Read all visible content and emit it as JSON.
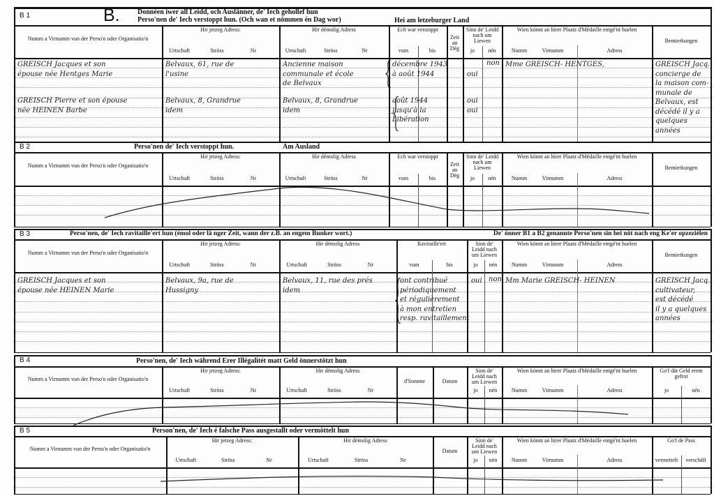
{
  "sections": [
    {
      "id": "B 1",
      "big_letter": "B.",
      "title_lines": [
        "Donnéen iwer all Leidd, och Auslänner, de' Iech gehollef hun",
        "Perso'nen de' Iech verstoppt hun. (Och wan et nömmen én Dag wor)"
      ],
      "subtitle": "Hei am letzeburger Land",
      "columns": {
        "name": {
          "label": "Numm a Virnumm vun der Perso'n oder Organisatio'n",
          "subs": []
        },
        "cur": {
          "label": "Hir jetzeg Adress:",
          "subs": [
            "Urtschaft",
            "Ströss",
            "Nr"
          ]
        },
        "former": {
          "label": "Hir démolig Adress",
          "subs": [
            "Urtschaft",
            "Ströss",
            "Nr"
          ]
        },
        "hid": {
          "label": "Ech war verstoppt",
          "subs": [
            "vum",
            "bis"
          ]
        },
        "zeit": {
          "label": "Zeit an Dég",
          "subs": []
        },
        "sinn": {
          "label": "Sinn de' Leidd nach um Liewen",
          "subs": [
            "jo",
            "nén"
          ]
        },
        "wien": {
          "label": "Wien könnt an hirer Plaatz d'Médaille entgé'nt huelen",
          "subs": [
            "Numm",
            "Virnumm",
            "Adress"
          ]
        },
        "bem": {
          "label": "Bemierkungen",
          "subs": []
        }
      },
      "entries": [
        {
          "col": "name",
          "row": 0,
          "lines": [
            "GREISCH Jacques et son",
            "épouse née Hentges Marie"
          ]
        },
        {
          "col": "cur",
          "row": 0,
          "lines": [
            "Belvaux, 61, rue de",
            "   l'usine"
          ]
        },
        {
          "col": "former",
          "row": 0,
          "lines": [
            "Ancienne maison",
            "communale et école",
            "de Belvaux"
          ]
        },
        {
          "col": "hid",
          "row": 0,
          "lines": [
            "décembre 1943",
            "à août 1944"
          ]
        },
        {
          "col": "jo",
          "row": 0,
          "lines": [
            "",
            "oui"
          ]
        },
        {
          "col": "nen",
          "row": 0,
          "lines": [
            "non"
          ]
        },
        {
          "col": "wien",
          "row": 0,
          "lines": [
            "Mme GREISCH- HENTGES,"
          ]
        },
        {
          "col": "bem",
          "row": 0,
          "lines": [
            "GREISCH Jacq.",
            "concierge de",
            "la maison com-",
            "munale de",
            "Belvaux, est",
            "décédé il y a",
            "quelques",
            "années"
          ]
        },
        {
          "col": "name",
          "row": 1,
          "lines": [
            "GREISCH Pierre et son épouse",
            "née HEINEN Barbe"
          ]
        },
        {
          "col": "cur",
          "row": 1,
          "lines": [
            "Belvaux, 8, Grandrue",
            "       idem"
          ]
        },
        {
          "col": "former",
          "row": 1,
          "lines": [
            "Belvaux, 8, Grandrue",
            "       idem"
          ]
        },
        {
          "col": "hid",
          "row": 1,
          "lines": [
            "août 1944",
            "jusqu'à la",
            "Libération"
          ]
        },
        {
          "col": "jo",
          "row": 1,
          "lines": [
            "oui",
            "oui"
          ]
        }
      ]
    },
    {
      "id": "B 2",
      "title_lines": [
        "Perso'nen de' Iech verstoppt hun."
      ],
      "subtitle": "Am Ausland",
      "columns": {
        "name": {
          "label": "Numm a Virnumm vun der Perso'n oder Organisatio'n",
          "subs": []
        },
        "cur": {
          "label": "Hir jetzeg Adress:",
          "subs": [
            "Urtschaft",
            "Ströss",
            "Nr"
          ]
        },
        "former": {
          "label": "Hir démolig Adress",
          "subs": [
            "Urtschaft",
            "Ströss",
            "Nr"
          ]
        },
        "hid": {
          "label": "Ech war verstoppt",
          "subs": [
            "vum",
            "bis"
          ]
        },
        "zeit": {
          "label": "Zeit an Dég",
          "subs": []
        },
        "sinn": {
          "label": "Sinn de' Leidd nach um Liewen",
          "subs": [
            "jo",
            "nén"
          ]
        },
        "wien": {
          "label": "Wien könnt an hirer Plaatz d'Médaille entgé'nt huelen",
          "subs": [
            "Numm",
            "Virnumm",
            "Adress"
          ]
        },
        "bem": {
          "label": "Bemierkungen",
          "subs": []
        }
      },
      "entries": []
    },
    {
      "id": "B 3",
      "title_lines": [
        "Perso'nen, de' Iech ravitaille'ert hun (émol oder lä nger Zeit, wann der z.B. an engem Bunker wort.)"
      ],
      "subtitle": "De' önner B1 a B2 genannte Perso'nen sin hei nöt nach eng Ke'er opzeziélen",
      "columns": {
        "name": {
          "label": "Numm a Virnumm vun der Perso'n oder Organisatio'n",
          "subs": []
        },
        "cur": {
          "label": "Hir jetzeg Adress:",
          "subs": [
            "Urtschaft",
            "Ströss",
            "Nr"
          ]
        },
        "former": {
          "label": "Hir démolig Adress",
          "subs": [
            "Urtschaft",
            "Ströss",
            "Nr"
          ]
        },
        "ravit": {
          "label": "Ravitaille'ert",
          "subs": [
            "vum",
            "bis"
          ]
        },
        "sinn": {
          "label": "Sinn de' Leidd nach um Liewen",
          "subs": [
            "jo",
            "nén"
          ]
        },
        "wien": {
          "label": "Wien könnt an hirer Plaatz d'Médaille entgé'nt huelen",
          "subs": [
            "Numm",
            "Virnumm",
            "Adress"
          ]
        },
        "bem": {
          "label": "Bemierkungen",
          "subs": []
        }
      },
      "entries": [
        {
          "col": "name",
          "row": 0,
          "lines": [
            "GREISCH Jacques et son",
            "épouse née HEINEN Marie"
          ]
        },
        {
          "col": "cur",
          "row": 0,
          "lines": [
            "Belvaux, 9a, rue de",
            "    Hussigny"
          ]
        },
        {
          "col": "former",
          "row": 0,
          "lines": [
            "Belvaux, 11, rue des prés",
            "          idem"
          ]
        },
        {
          "col": "ravit",
          "row": 0,
          "lines": [
            "ont contribué",
            "périodiquement",
            "et régulièrement",
            "à mon entretien",
            "resp. ravitaillement"
          ]
        },
        {
          "col": "jo",
          "row": 0,
          "lines": [
            "oui"
          ]
        },
        {
          "col": "nen",
          "row": 0,
          "lines": [
            "non"
          ]
        },
        {
          "col": "wien",
          "row": 0,
          "lines": [
            "Mm Marie GREISCH- HEINEN"
          ]
        },
        {
          "col": "bem",
          "row": 0,
          "lines": [
            "GREISCH Jacq.",
            "cultivateur,",
            "est décédé",
            "il y a quelques",
            "années"
          ]
        }
      ]
    },
    {
      "id": "B 4",
      "title_lines": [
        "Perso'nen, de' Iech während Erer Illégalitét matt Geld önnerstötzt hun"
      ],
      "subtitle": "",
      "columns": {
        "name": {
          "label": "Numm a Virnumm vun der Perso'n oder Organisatio'n",
          "subs": []
        },
        "cur": {
          "label": "Hir jetzeg Adress:",
          "subs": [
            "Urtschaft",
            "Ströss",
            "Nr"
          ]
        },
        "former": {
          "label": "Hir démolig Adress",
          "subs": [
            "Urtschaft",
            "Ströss",
            "Nr"
          ]
        },
        "somme": {
          "label": "d'Somme",
          "subs": []
        },
        "datum": {
          "label": "Datum",
          "subs": []
        },
        "sinn": {
          "label": "Sinn de' Leidd nach um Liewen",
          "subs": [
            "jo",
            "nén"
          ]
        },
        "wien": {
          "label": "Wien könnt an hirer Plaatz d'Médaille entgé'nt huelen",
          "subs": [
            "Numm",
            "Virnumm",
            "Adress"
          ]
        },
        "gof": {
          "label": "Go'f dät Geld erem gefrot",
          "subs": [
            "jo",
            "nén"
          ]
        }
      },
      "entries": []
    },
    {
      "id": "B 5",
      "title_lines": [
        "Person'nen, de' Iech é falsche Pass ausgestallt oder vermöttelt hun"
      ],
      "subtitle": "",
      "columns": {
        "name": {
          "label": "Numm a Virnumm vun der Perso'n oder Organisatio'n",
          "subs": []
        },
        "cur": {
          "label": "Hir jetzeg Adress:",
          "subs": [
            "Urtschaft",
            "Ströss",
            "Nr"
          ]
        },
        "former": {
          "label": "Hir démolig Adress",
          "subs": [
            "Urtschaft",
            "Ströss",
            "Nr"
          ]
        },
        "datum": {
          "label": "Datum",
          "subs": []
        },
        "sinn": {
          "label": "Sinn de' Leidd nach um Liewen",
          "subs": [
            "jo",
            "nén"
          ]
        },
        "wien": {
          "label": "Wien könnt an hirer Plaatz d'Médaille entgé'nt huelen",
          "subs": [
            "Numm",
            "Virnumm",
            "Adress"
          ]
        },
        "pass": {
          "label": "Go'f de Pass",
          "subs": [
            "vermettelt",
            "verschäft"
          ]
        }
      },
      "entries": []
    }
  ]
}
